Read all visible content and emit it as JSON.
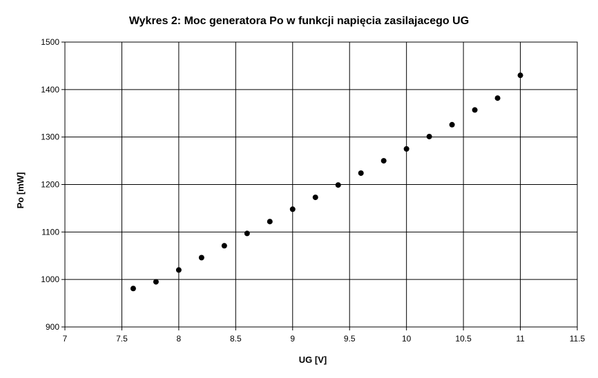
{
  "chart_data": {
    "type": "scatter",
    "title": "Wykres 2: Moc generatora Po w funkcji napięcia zasilajacego UG",
    "xlabel": "UG [V]",
    "ylabel": "Po [mW]",
    "xlim": [
      7,
      11.5
    ],
    "ylim": [
      900,
      1500
    ],
    "x_ticks": [
      "7",
      "7.5",
      "8",
      "8.5",
      "9",
      "9.5",
      "10",
      "10.5",
      "11",
      "11.5"
    ],
    "y_ticks": [
      "900",
      "1000",
      "1100",
      "1200",
      "1300",
      "1400",
      "1500"
    ],
    "grid": true,
    "legend": "none",
    "marker_color": "#000000",
    "series": [
      {
        "x": [
          7.6,
          7.8,
          8.0,
          8.2,
          8.4,
          8.6,
          8.8,
          9.0,
          9.2,
          9.4,
          9.6,
          9.8,
          10.0,
          10.2,
          10.4,
          10.6,
          10.8,
          11.0
        ],
        "y": [
          981,
          995,
          1020,
          1046,
          1071,
          1097,
          1122,
          1148,
          1173,
          1199,
          1224,
          1250,
          1275,
          1301,
          1326,
          1357,
          1382,
          1430
        ]
      }
    ]
  }
}
